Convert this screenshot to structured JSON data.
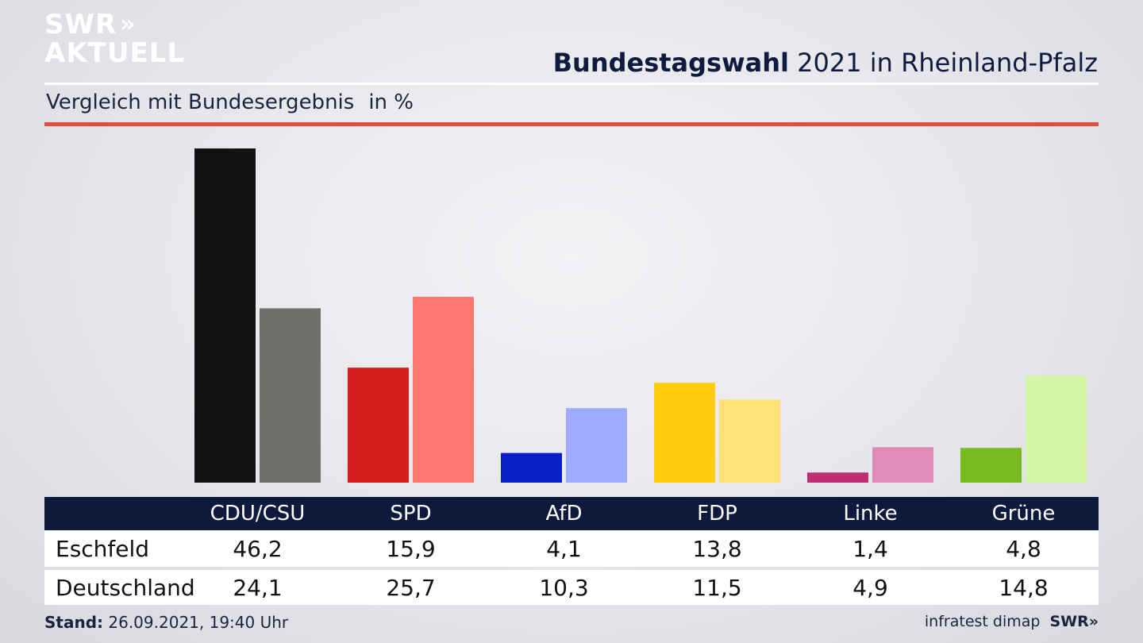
{
  "brand": {
    "line1": "SWR",
    "chevrons": "»",
    "line2": "AKTUELL"
  },
  "header": {
    "title_bold": "Bundestagswahl",
    "title_rest": "2021 in Rheinland-Pfalz"
  },
  "subtitle": {
    "text": "Vergleich mit Bundesergebnis",
    "unit": "in %"
  },
  "chart_data": {
    "type": "bar",
    "title": "Bundestagswahl 2021 in Rheinland-Pfalz",
    "subtitle": "Vergleich mit Bundesergebnis",
    "ylabel": "in %",
    "categories": [
      "CDU/CSU",
      "SPD",
      "AfD",
      "FDP",
      "Linke",
      "Grüne"
    ],
    "series": [
      {
        "name": "Eschfeld",
        "values": [
          46.2,
          15.9,
          4.1,
          13.8,
          1.4,
          4.8
        ],
        "colors": [
          "#121212",
          "#d62020",
          "#0a21c8",
          "#ffcc0a",
          "#be3076",
          "#76bc21"
        ]
      },
      {
        "name": "Deutschland",
        "values": [
          24.1,
          25.7,
          10.3,
          11.5,
          4.9,
          14.8
        ],
        "colors": [
          "#706f6c",
          "#ff7870",
          "#9fabff",
          "#ffe277",
          "#e18bb8",
          "#d4f5a8"
        ]
      }
    ],
    "value_labels": [
      [
        "46,2",
        "15,9",
        "4,1",
        "13,8",
        "1,4",
        "4,8"
      ],
      [
        "24,1",
        "25,7",
        "10,3",
        "11,5",
        "4,9",
        "14,8"
      ]
    ],
    "ylim": [
      0,
      46.2
    ],
    "grid": false
  },
  "footer": {
    "stand_label": "Stand:",
    "stand_value": "26.09.2021, 19:40 Uhr",
    "source": "infratest dimap",
    "brand": "SWR»"
  }
}
